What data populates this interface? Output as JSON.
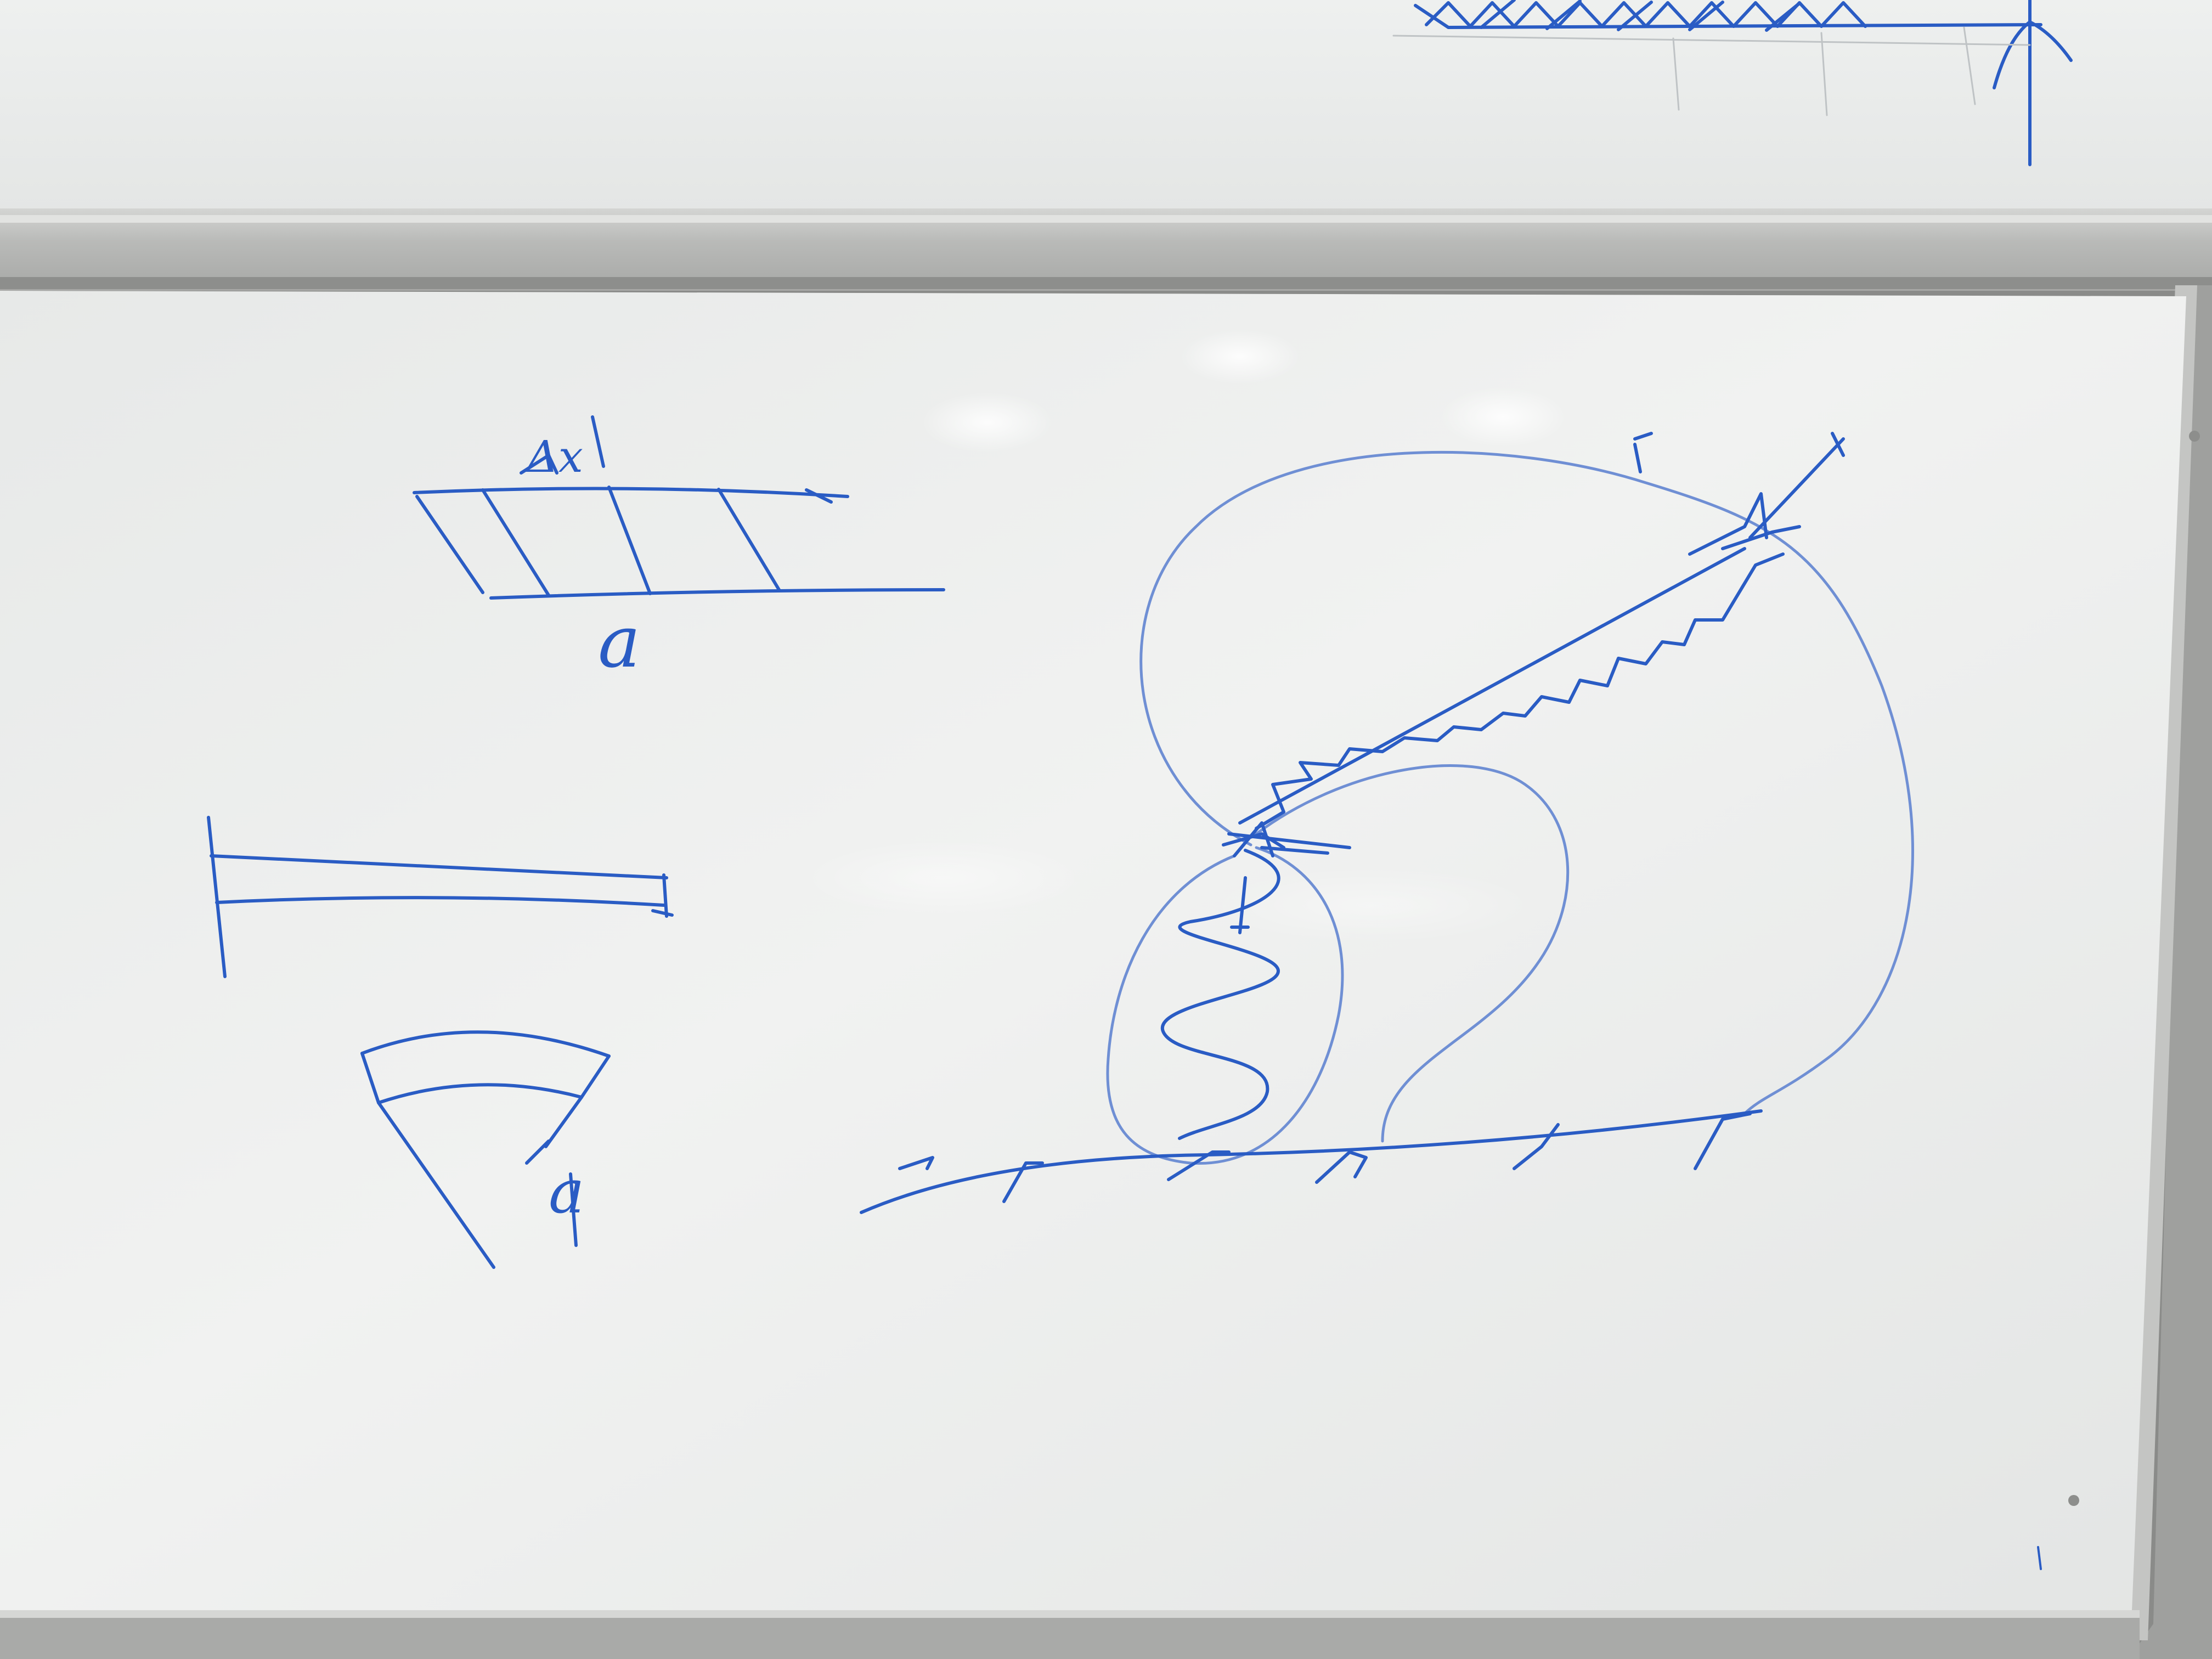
{
  "scene": {
    "description_type": "whiteboard-photo",
    "colors": {
      "board": "#eef0ef",
      "board_shadow": "#d9dbda",
      "tray": "#b6b7b5",
      "tray_highlight": "#dcdcda",
      "frame": "#9c9d9b",
      "wall": "#7f807e",
      "ink_dark": "#2a5cc4",
      "ink_light": "#6f8fd4"
    }
  },
  "labels": {
    "strip_label": "a",
    "strip_top_mark": "Δx",
    "wedge_label": "a"
  }
}
